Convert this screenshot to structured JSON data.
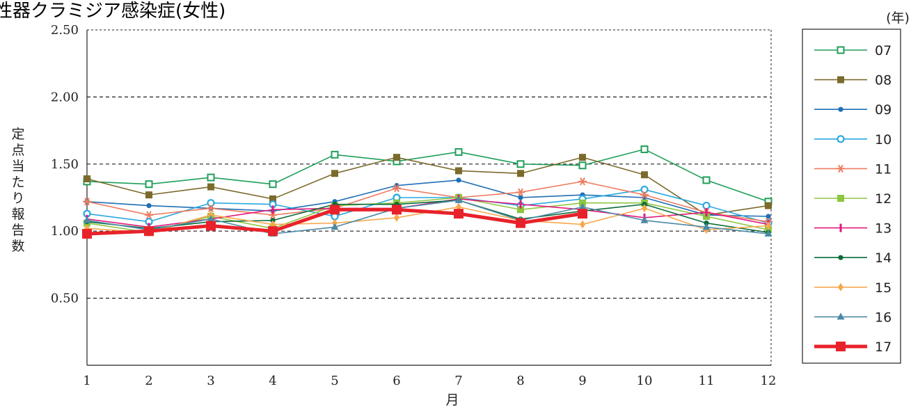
{
  "chart_data": {
    "type": "line",
    "title": "性器クラミジア感染症(女性)",
    "xlabel": "月",
    "ylabel": "定点当たり報告数",
    "legend_title": "(年)",
    "legend_position": "right",
    "categories": [
      "1",
      "2",
      "3",
      "4",
      "5",
      "6",
      "7",
      "8",
      "9",
      "10",
      "11",
      "12"
    ],
    "ylim": [
      0,
      2.5
    ],
    "yticks": [
      "0.50",
      "1.00",
      "1.50",
      "2.00",
      "2.50"
    ],
    "grid": "horizontal dashed",
    "series": [
      {
        "name": "07",
        "color": "#1f9e5a",
        "marker": "square-open",
        "values": [
          1.37,
          1.35,
          1.4,
          1.35,
          1.57,
          1.52,
          1.59,
          1.5,
          1.49,
          1.61,
          1.38,
          1.22
        ]
      },
      {
        "name": "08",
        "color": "#7b6a2c",
        "marker": "square",
        "values": [
          1.39,
          1.27,
          1.33,
          1.24,
          1.43,
          1.55,
          1.45,
          1.43,
          1.55,
          1.42,
          1.12,
          1.19
        ]
      },
      {
        "name": "09",
        "color": "#1f6fb5",
        "marker": "dot",
        "values": [
          1.22,
          1.19,
          1.17,
          1.15,
          1.22,
          1.34,
          1.38,
          1.25,
          1.27,
          1.25,
          1.12,
          1.11
        ]
      },
      {
        "name": "10",
        "color": "#29a8e0",
        "marker": "circle-open",
        "values": [
          1.13,
          1.07,
          1.21,
          1.2,
          1.11,
          1.25,
          1.25,
          1.19,
          1.24,
          1.31,
          1.19,
          1.06
        ]
      },
      {
        "name": "11",
        "color": "#ee7b5f",
        "marker": "asterisk",
        "values": [
          1.22,
          1.12,
          1.17,
          1.12,
          1.17,
          1.32,
          1.25,
          1.29,
          1.37,
          1.27,
          1.14,
          1.07
        ]
      },
      {
        "name": "12",
        "color": "#8dc63f",
        "marker": "square",
        "values": [
          1.06,
          0.99,
          1.11,
          1.02,
          1.19,
          1.21,
          1.25,
          1.16,
          1.21,
          1.21,
          1.11,
          1.01
        ]
      },
      {
        "name": "13",
        "color": "#e2197c",
        "marker": "bar",
        "values": [
          1.09,
          1.03,
          1.09,
          1.16,
          1.17,
          1.17,
          1.24,
          1.2,
          1.16,
          1.1,
          1.14,
          1.05
        ]
      },
      {
        "name": "14",
        "color": "#0a6b3a",
        "marker": "dot",
        "values": [
          1.07,
          1.02,
          1.07,
          1.08,
          1.2,
          1.2,
          1.23,
          1.09,
          1.15,
          1.2,
          1.06,
          0.99
        ]
      },
      {
        "name": "15",
        "color": "#f7a84b",
        "marker": "diamond",
        "values": [
          1.02,
          0.99,
          1.12,
          1.05,
          1.06,
          1.1,
          1.18,
          1.08,
          1.05,
          1.17,
          1.01,
          1.04
        ]
      },
      {
        "name": "16",
        "color": "#4b8aa6",
        "marker": "triangle",
        "values": [
          1.08,
          1.01,
          1.09,
          0.98,
          1.03,
          1.17,
          1.23,
          1.08,
          1.18,
          1.08,
          1.03,
          0.98
        ]
      },
      {
        "name": "17",
        "color": "#e8222a",
        "marker": "square-big",
        "values": [
          0.98,
          1.0,
          1.04,
          1.0,
          1.16,
          1.16,
          1.13,
          1.06,
          1.13,
          null,
          null,
          null
        ]
      }
    ]
  }
}
